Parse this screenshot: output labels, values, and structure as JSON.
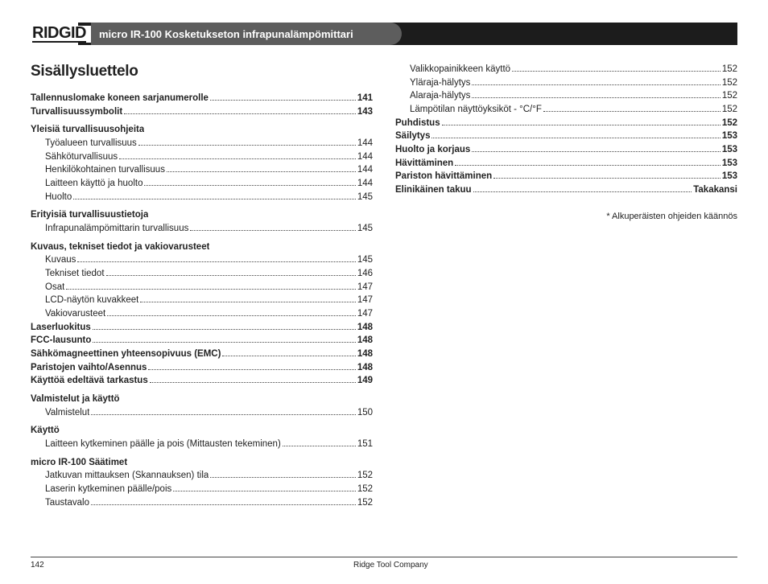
{
  "header": {
    "brand": "RIDGID",
    "product_title": "micro IR-100 Kosketukseton infrapunalämpömittari"
  },
  "toc_title": "Sisällysluettelo",
  "left_column": [
    {
      "type": "entry",
      "bold": true,
      "label": "Tallennuslomake koneen sarjanumerolle",
      "page": "141"
    },
    {
      "type": "entry",
      "bold": true,
      "label": "Turvallisuussymbolit",
      "page": "143"
    },
    {
      "type": "heading",
      "label": "Yleisiä turvallisuusohjeita"
    },
    {
      "type": "entry",
      "indent": true,
      "label": "Työalueen turvallisuus",
      "page": "144"
    },
    {
      "type": "entry",
      "indent": true,
      "label": "Sähköturvallisuus",
      "page": "144"
    },
    {
      "type": "entry",
      "indent": true,
      "label": "Henkilökohtainen turvallisuus",
      "page": "144"
    },
    {
      "type": "entry",
      "indent": true,
      "label": "Laitteen käyttö ja huolto",
      "page": "144"
    },
    {
      "type": "entry",
      "indent": true,
      "label": "Huolto",
      "page": "145"
    },
    {
      "type": "heading",
      "label": "Erityisiä turvallisuustietoja"
    },
    {
      "type": "entry",
      "indent": true,
      "label": "Infrapunalämpömittarin turvallisuus",
      "page": "145"
    },
    {
      "type": "heading",
      "label": "Kuvaus, tekniset tiedot ja vakiovarusteet"
    },
    {
      "type": "entry",
      "indent": true,
      "label": "Kuvaus",
      "page": "145"
    },
    {
      "type": "entry",
      "indent": true,
      "label": "Tekniset tiedot",
      "page": "146"
    },
    {
      "type": "entry",
      "indent": true,
      "label": "Osat",
      "page": "147"
    },
    {
      "type": "entry",
      "indent": true,
      "label": "LCD-näytön kuvakkeet",
      "page": "147"
    },
    {
      "type": "entry",
      "indent": true,
      "label": "Vakiovarusteet",
      "page": "147"
    },
    {
      "type": "entry",
      "bold": true,
      "label": "Laserluokitus",
      "page": "148"
    },
    {
      "type": "entry",
      "bold": true,
      "label": "FCC-lausunto",
      "page": "148"
    },
    {
      "type": "entry",
      "bold": true,
      "label": "Sähkömagneettinen yhteensopivuus (EMC)",
      "page": "148"
    },
    {
      "type": "entry",
      "bold": true,
      "label": "Paristojen vaihto/Asennus",
      "page": "148"
    },
    {
      "type": "entry",
      "bold": true,
      "label": "Käyttöä edeltävä tarkastus",
      "page": "149"
    },
    {
      "type": "heading",
      "label": "Valmistelut ja käyttö"
    },
    {
      "type": "entry",
      "indent": true,
      "label": "Valmistelut",
      "page": "150"
    },
    {
      "type": "heading",
      "label": "Käyttö"
    },
    {
      "type": "entry",
      "indent": true,
      "label": "Laitteen kytkeminen päälle ja pois (Mittausten tekeminen)",
      "page": "151"
    },
    {
      "type": "heading",
      "label": "micro IR-100 Säätimet"
    },
    {
      "type": "entry",
      "indent": true,
      "label": "Jatkuvan mittauksen (Skannauksen) tila",
      "page": "152"
    },
    {
      "type": "entry",
      "indent": true,
      "label": "Laserin kytkeminen päälle/pois",
      "page": "152"
    },
    {
      "type": "entry",
      "indent": true,
      "label": "Taustavalo",
      "page": "152"
    }
  ],
  "right_column": [
    {
      "type": "entry",
      "indent": true,
      "label": "Valikkopainikkeen käyttö",
      "page": "152"
    },
    {
      "type": "entry",
      "indent": true,
      "label": "Yläraja-hälytys",
      "page": "152"
    },
    {
      "type": "entry",
      "indent": true,
      "label": "Alaraja-hälytys",
      "page": "152"
    },
    {
      "type": "entry",
      "indent": true,
      "label": "Lämpötilan näyttöyksiköt - °C/°F",
      "page": "152"
    },
    {
      "type": "entry",
      "bold": true,
      "label": "Puhdistus",
      "page": "152"
    },
    {
      "type": "entry",
      "bold": true,
      "label": "Säilytys",
      "page": "153"
    },
    {
      "type": "entry",
      "bold": true,
      "label": "Huolto ja korjaus",
      "page": "153"
    },
    {
      "type": "entry",
      "bold": true,
      "label": "Hävittäminen",
      "page": "153"
    },
    {
      "type": "entry",
      "bold": true,
      "label": "Pariston hävittäminen",
      "page": "153"
    },
    {
      "type": "entry",
      "bold": true,
      "label": "Elinikäinen takuu",
      "page": "Takakansi"
    }
  ],
  "footnote": "* Alkuperäisten ohjeiden käännös",
  "footer": {
    "page_number": "142",
    "company": "Ridge Tool Company"
  }
}
